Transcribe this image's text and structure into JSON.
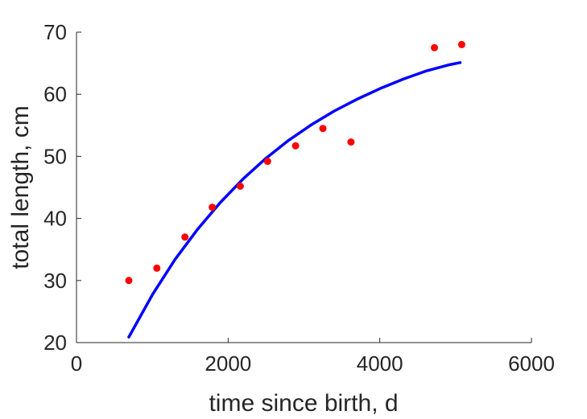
{
  "chart_data": {
    "type": "scatter",
    "title": "",
    "xlabel": "time since birth, d",
    "ylabel": "total length, cm",
    "xlim": [
      0,
      6000
    ],
    "ylim": [
      20,
      70
    ],
    "xticks": [
      0,
      2000,
      4000,
      6000
    ],
    "yticks": [
      20,
      30,
      40,
      50,
      60,
      70
    ],
    "xtick_labels": [
      "0",
      "2000",
      "4000",
      "6000"
    ],
    "ytick_labels": [
      "20",
      "30",
      "40",
      "50",
      "60",
      "70"
    ],
    "grid": false,
    "series": [
      {
        "kind": "scatter",
        "color": "#ff0000",
        "x": [
          690,
          1060,
          1430,
          1790,
          2160,
          2520,
          2890,
          3250,
          3620,
          4720,
          5080
        ],
        "y": [
          30.0,
          32.0,
          37.0,
          41.8,
          45.2,
          49.2,
          51.7,
          54.5,
          52.3,
          67.5,
          68.0
        ]
      },
      {
        "kind": "line",
        "color": "#0000ff",
        "x": [
          690,
          1000,
          1300,
          1600,
          1900,
          2200,
          2500,
          2800,
          3100,
          3400,
          3700,
          4000,
          4300,
          4600,
          4900,
          5060
        ],
        "y": [
          20.9,
          27.7,
          33.4,
          38.3,
          42.6,
          46.4,
          49.7,
          52.6,
          55.1,
          57.3,
          59.2,
          60.9,
          62.4,
          63.7,
          64.7,
          65.1
        ]
      }
    ]
  }
}
